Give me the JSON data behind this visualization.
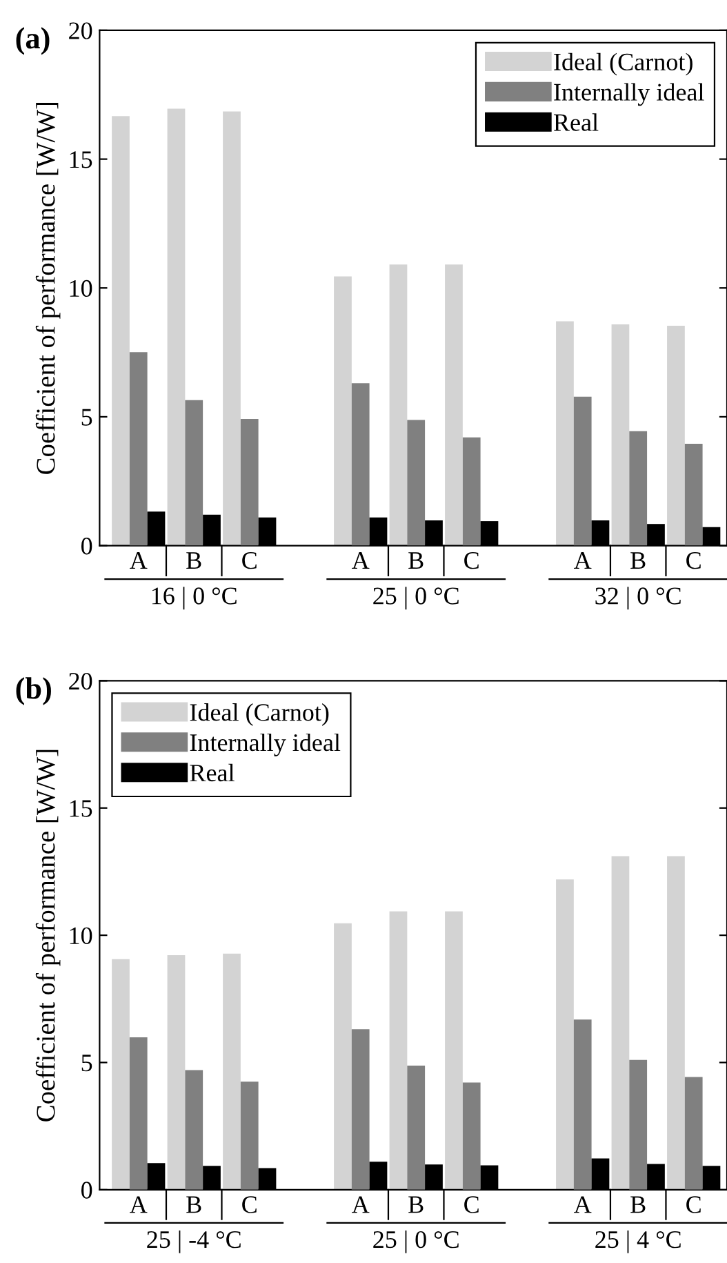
{
  "chart_data": [
    {
      "type": "bar",
      "title": "(a)",
      "ylabel": "Coefficient of performance [W/W]",
      "categories": [
        "A",
        "B",
        "C",
        null,
        "A",
        "B",
        "C",
        null,
        "A",
        "B",
        "C"
      ],
      "annotations": [
        "16 | 0 °C",
        "25 | 0 °C",
        "32 | 0 °C"
      ],
      "ylim": [
        0,
        20
      ],
      "yticks": [
        0,
        5,
        10,
        15,
        20
      ],
      "legend": "top right",
      "series": [
        {
          "name": "Ideal (Carnot)",
          "color": "#d3d3d3",
          "values": [
            16.67,
            16.96,
            16.85,
            null,
            10.45,
            10.91,
            10.91,
            null,
            8.71,
            8.59,
            8.53
          ]
        },
        {
          "name": "Internally ideal",
          "color": "#808080",
          "values": [
            7.51,
            5.65,
            4.92,
            null,
            6.3,
            4.88,
            4.2,
            null,
            5.78,
            4.44,
            3.95
          ]
        },
        {
          "name": "Real",
          "color": "#000000",
          "values": [
            1.32,
            1.2,
            1.09,
            null,
            1.09,
            0.98,
            0.95,
            null,
            0.98,
            0.84,
            0.72
          ]
        }
      ]
    },
    {
      "type": "bar",
      "title": "(b)",
      "ylabel": "Coefficient of performance [W/W]",
      "categories": [
        "A",
        "B",
        "C",
        null,
        "A",
        "B",
        "C",
        null,
        "A",
        "B",
        "C"
      ],
      "annotations": [
        "25 | -4 °C",
        "25 | 0 °C",
        "25 | 4 °C"
      ],
      "ylim": [
        0,
        20
      ],
      "yticks": [
        0,
        5,
        10,
        15,
        20
      ],
      "legend": "top left",
      "series": [
        {
          "name": "Ideal (Carnot)",
          "color": "#d3d3d3",
          "values": [
            9.06,
            9.22,
            9.28,
            null,
            10.47,
            10.94,
            10.94,
            null,
            12.19,
            13.11,
            13.11
          ]
        },
        {
          "name": "Internally ideal",
          "color": "#808080",
          "values": [
            5.99,
            4.7,
            4.25,
            null,
            6.31,
            4.88,
            4.21,
            null,
            6.69,
            5.1,
            4.43
          ]
        },
        {
          "name": "Real",
          "color": "#000000",
          "values": [
            1.05,
            0.94,
            0.85,
            null,
            1.1,
            0.99,
            0.96,
            null,
            1.23,
            1.01,
            0.94
          ]
        }
      ]
    }
  ]
}
